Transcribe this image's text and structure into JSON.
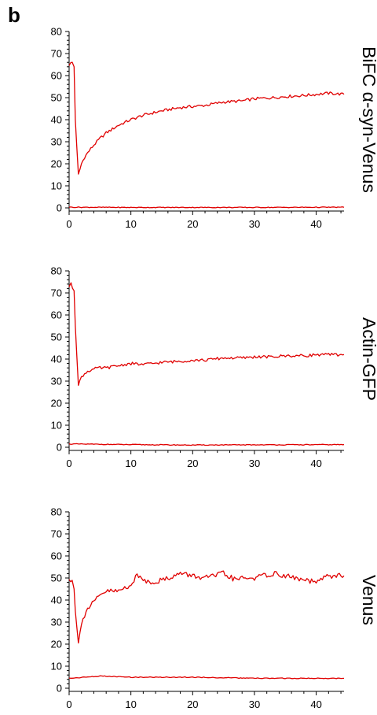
{
  "panel_letter": "b",
  "chart_data": [
    {
      "type": "line",
      "side_label": "BiFC α-syn-Venus",
      "xlim": [
        0,
        44.5
      ],
      "ylim": [
        0,
        80
      ],
      "x_ticks": [
        0,
        10,
        20,
        30,
        40
      ],
      "y_ticks": [
        0,
        10,
        20,
        30,
        40,
        50,
        60,
        70,
        80
      ],
      "color": "#e00000",
      "series": [
        {
          "x": [
            0,
            0.5,
            0.8,
            1.0,
            1.5,
            2,
            2.5,
            3,
            4,
            5,
            6,
            8,
            10,
            12,
            15,
            18,
            20,
            22,
            25,
            28,
            30,
            33,
            35,
            38,
            40,
            42,
            44.5
          ],
          "y": [
            65,
            66,
            64,
            40,
            15,
            20,
            23,
            25,
            28.5,
            31.5,
            34,
            37.5,
            40,
            42,
            44,
            45.5,
            46,
            46.5,
            48,
            48.5,
            49.5,
            50,
            50.5,
            51,
            51.5,
            52,
            51.5
          ]
        },
        {
          "x": [
            0,
            10,
            20,
            30,
            44.5
          ],
          "y": [
            0.3,
            0.2,
            0.2,
            0.2,
            0.3
          ]
        }
      ]
    },
    {
      "type": "line",
      "side_label": "Actin-GFP",
      "xlim": [
        0,
        44.5
      ],
      "ylim": [
        0,
        80
      ],
      "x_ticks": [
        0,
        10,
        20,
        30,
        40
      ],
      "y_ticks": [
        0,
        10,
        20,
        30,
        40,
        50,
        60,
        70,
        80
      ],
      "color": "#e00000",
      "series": [
        {
          "x": [
            0,
            0.3,
            0.8,
            1.0,
            1.5,
            2,
            3,
            4,
            5,
            6,
            8,
            10,
            12,
            15,
            18,
            20,
            22,
            25,
            28,
            30,
            33,
            35,
            38,
            40,
            42,
            44.5
          ],
          "y": [
            73,
            74,
            71,
            55,
            28,
            32,
            34.5,
            35.5,
            36,
            36,
            37,
            38,
            37.5,
            38.5,
            39,
            39.5,
            39.5,
            40.5,
            40.5,
            41,
            41,
            41.5,
            41.5,
            42,
            42,
            42
          ]
        },
        {
          "x": [
            0,
            10,
            20,
            30,
            44.5
          ],
          "y": [
            1.5,
            1.2,
            1.0,
            1.1,
            1.2
          ]
        }
      ]
    },
    {
      "type": "line",
      "side_label": "Venus",
      "xlim": [
        0,
        44.5
      ],
      "ylim": [
        0,
        80
      ],
      "x_ticks": [
        0,
        10,
        20,
        30,
        40
      ],
      "y_ticks": [
        0,
        10,
        20,
        30,
        40,
        50,
        60,
        70,
        80
      ],
      "color": "#e00000",
      "series": [
        {
          "x": [
            0,
            0.5,
            0.8,
            1.0,
            1.5,
            2,
            3,
            4,
            5,
            6,
            8,
            10,
            11,
            13,
            15,
            18,
            20,
            22,
            25,
            27,
            28,
            30,
            33,
            35,
            38,
            40,
            42,
            44.5
          ],
          "y": [
            49,
            49.5,
            45,
            35,
            20.5,
            30,
            36,
            39,
            42,
            44,
            44,
            47,
            51,
            48,
            49,
            52,
            51,
            50,
            52,
            49,
            50,
            50,
            52,
            51,
            49,
            48,
            51,
            51
          ]
        },
        {
          "x": [
            0,
            5,
            10,
            20,
            30,
            40,
            44.5
          ],
          "y": [
            4.5,
            5.5,
            5,
            5,
            4.5,
            4.5,
            4.5
          ]
        }
      ]
    }
  ]
}
